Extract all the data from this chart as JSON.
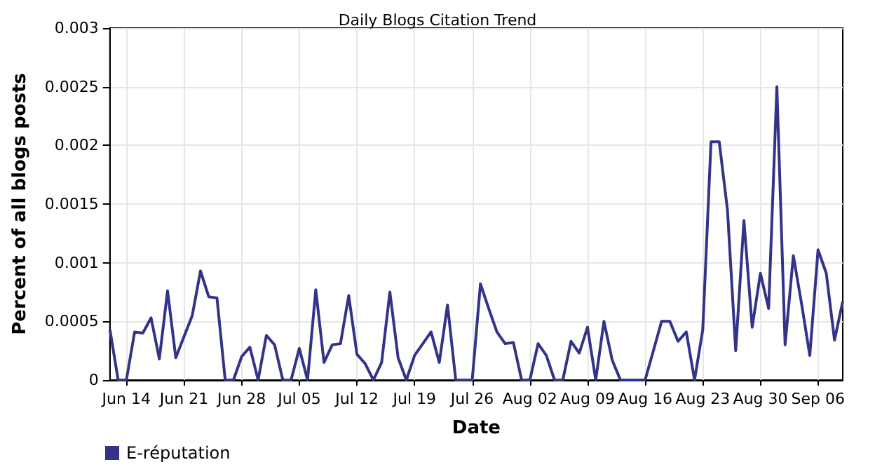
{
  "chart_data": {
    "type": "line",
    "title": "Daily Blogs Citation Trend",
    "xlabel": "Date",
    "ylabel": "Percent of all blogs posts",
    "x": [
      "--06-12",
      "--06-13",
      "--06-14",
      "--06-15",
      "--06-16",
      "--06-17",
      "--06-18",
      "--06-19",
      "--06-20",
      "--06-21",
      "--06-22",
      "--06-23",
      "--06-24",
      "--06-25",
      "--06-26",
      "--06-27",
      "--06-28",
      "--06-29",
      "--06-30",
      "--07-01",
      "--07-02",
      "--07-03",
      "--07-04",
      "--07-05",
      "--07-06",
      "--07-07",
      "--07-08",
      "--07-09",
      "--07-10",
      "--07-11",
      "--07-12",
      "--07-13",
      "--07-14",
      "--07-15",
      "--07-16",
      "--07-17",
      "--07-18",
      "--07-19",
      "--07-20",
      "--07-21",
      "--07-22",
      "--07-23",
      "--07-24",
      "--07-25",
      "--07-26",
      "--07-27",
      "--07-28",
      "--07-29",
      "--07-30",
      "--07-31",
      "--08-01",
      "--08-02",
      "--08-03",
      "--08-04",
      "--08-05",
      "--08-06",
      "--08-07",
      "--08-08",
      "--08-09",
      "--08-10",
      "--08-11",
      "--08-12",
      "--08-13",
      "--08-14",
      "--08-15",
      "--08-16",
      "--08-17",
      "--08-18",
      "--08-19",
      "--08-20",
      "--08-21",
      "--08-22",
      "--08-23",
      "--08-24",
      "--08-25",
      "--08-26",
      "--08-27",
      "--08-28",
      "--08-29",
      "--08-30",
      "--08-31",
      "--09-01",
      "--09-02",
      "--09-03",
      "--09-04",
      "--09-05",
      "--09-06",
      "--09-07",
      "--09-08",
      "--09-09"
    ],
    "series": [
      {
        "name": "E-réputation",
        "color": "#333388",
        "values": [
          0.00043,
          0,
          0,
          0.00041,
          0.0004,
          0.00053,
          0.00018,
          0.00076,
          0.00019,
          0.00037,
          0.00055,
          0.00093,
          0.00071,
          0.0007,
          0,
          0,
          0.0002,
          0.00028,
          0,
          0.00038,
          0.0003,
          0,
          0,
          0.00027,
          0,
          0.00077,
          0.00015,
          0.0003,
          0.00031,
          0.00072,
          0.00022,
          0.00014,
          0,
          0.00015,
          0.00075,
          0.00019,
          0,
          0.00021,
          0.00031,
          0.00041,
          0.00015,
          0.00064,
          0,
          0,
          0,
          0.00082,
          0.00061,
          0.00041,
          0.00031,
          0.00032,
          0,
          0,
          0.00031,
          0.00021,
          0,
          0,
          0.00033,
          0.00023,
          0.00045,
          0,
          0.0005,
          0.00017,
          0,
          0,
          0,
          0,
          0.00025,
          0.0005,
          0.0005,
          0.00033,
          0.00041,
          0,
          0.00043,
          0.00203,
          0.00203,
          0.00145,
          0.00025,
          0.00136,
          0.00045,
          0.00091,
          0.00061,
          0.0025,
          0.0003,
          0.00106,
          0.00065,
          0.00021,
          0.00111,
          0.00091,
          0.00034,
          0.00067
        ]
      }
    ],
    "xlim": [
      "--06-12",
      "--09-09"
    ],
    "xticks": [
      {
        "value": "--06-14",
        "label": "Jun 14"
      },
      {
        "value": "--06-21",
        "label": "Jun 21"
      },
      {
        "value": "--06-28",
        "label": "Jun 28"
      },
      {
        "value": "--07-05",
        "label": "Jul 05"
      },
      {
        "value": "--07-12",
        "label": "Jul 12"
      },
      {
        "value": "--07-19",
        "label": "Jul 19"
      },
      {
        "value": "--07-26",
        "label": "Jul 26"
      },
      {
        "value": "--08-02",
        "label": "Aug 02"
      },
      {
        "value": "--08-09",
        "label": "Aug 09"
      },
      {
        "value": "--08-16",
        "label": "Aug 16"
      },
      {
        "value": "--08-23",
        "label": "Aug 23"
      },
      {
        "value": "--08-30",
        "label": "Aug 30"
      },
      {
        "value": "--09-06",
        "label": "Sep 06"
      }
    ],
    "ylim": [
      0,
      0.003
    ],
    "yticks": [
      0,
      0.0005,
      0.001,
      0.0015,
      0.002,
      0.0025,
      0.003
    ],
    "grid": true,
    "legend": "bottom left",
    "marker": "none",
    "line_style": "solid"
  }
}
